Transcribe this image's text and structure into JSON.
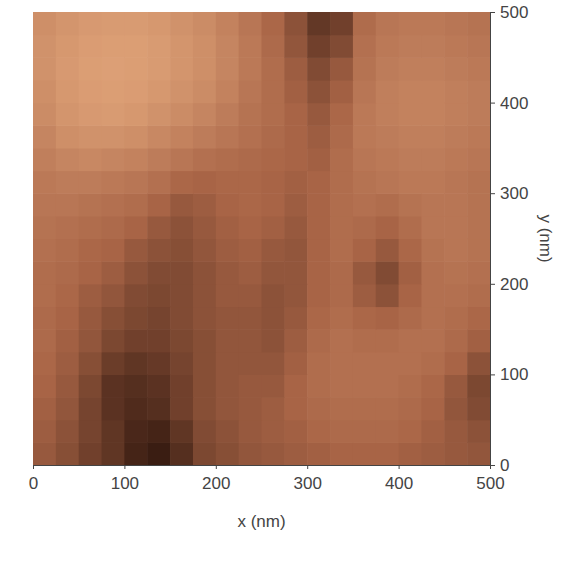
{
  "chart_data": {
    "type": "heatmap",
    "xlabel": "x (nm)",
    "ylabel": "y (nm)",
    "xlim": [
      0,
      500
    ],
    "ylim": [
      0,
      500
    ],
    "xticks": [
      0,
      100,
      200,
      300,
      400,
      500
    ],
    "yticks": [
      0,
      100,
      200,
      300,
      400,
      500
    ],
    "zlim": [
      0,
      100
    ],
    "x": [
      12.5,
      37.5,
      62.5,
      87.5,
      112.5,
      137.5,
      162.5,
      187.5,
      212.5,
      237.5,
      262.5,
      287.5,
      312.5,
      337.5,
      362.5,
      387.5,
      412.5,
      437.5,
      462.5,
      487.5
    ],
    "y": [
      12.5,
      37.5,
      62.5,
      87.5,
      112.5,
      137.5,
      162.5,
      187.5,
      212.5,
      237.5,
      262.5,
      287.5,
      312.5,
      337.5,
      362.5,
      387.5,
      412.5,
      437.5,
      462.5,
      487.5
    ],
    "cells": [
      [
        44,
        38,
        30,
        24,
        14,
        10,
        20,
        34,
        38,
        42,
        44,
        46,
        48,
        50,
        50,
        50,
        48,
        46,
        44,
        42
      ],
      [
        46,
        40,
        32,
        24,
        16,
        14,
        24,
        36,
        40,
        44,
        46,
        48,
        52,
        54,
        54,
        54,
        52,
        48,
        44,
        40
      ],
      [
        48,
        42,
        32,
        22,
        18,
        20,
        30,
        38,
        42,
        44,
        46,
        50,
        54,
        56,
        56,
        56,
        54,
        50,
        42,
        36
      ],
      [
        50,
        44,
        34,
        22,
        20,
        22,
        30,
        38,
        42,
        44,
        44,
        50,
        56,
        58,
        58,
        58,
        56,
        52,
        44,
        34
      ],
      [
        52,
        46,
        38,
        28,
        24,
        26,
        32,
        38,
        42,
        42,
        42,
        48,
        56,
        58,
        58,
        58,
        58,
        56,
        50,
        40
      ],
      [
        54,
        48,
        42,
        34,
        30,
        30,
        34,
        38,
        42,
        42,
        40,
        46,
        54,
        58,
        56,
        56,
        58,
        58,
        54,
        48
      ],
      [
        54,
        50,
        44,
        38,
        34,
        32,
        36,
        40,
        42,
        42,
        40,
        44,
        52,
        56,
        52,
        50,
        54,
        58,
        56,
        52
      ],
      [
        56,
        52,
        46,
        42,
        36,
        34,
        36,
        40,
        44,
        44,
        40,
        42,
        50,
        54,
        46,
        40,
        50,
        58,
        58,
        56
      ],
      [
        56,
        54,
        50,
        46,
        40,
        36,
        36,
        40,
        44,
        46,
        42,
        42,
        50,
        54,
        44,
        36,
        48,
        58,
        60,
        58
      ],
      [
        58,
        56,
        52,
        50,
        44,
        40,
        38,
        42,
        46,
        48,
        44,
        42,
        50,
        56,
        50,
        44,
        52,
        60,
        62,
        60
      ],
      [
        60,
        58,
        56,
        54,
        50,
        44,
        40,
        44,
        48,
        50,
        48,
        44,
        50,
        56,
        54,
        50,
        56,
        62,
        62,
        60
      ],
      [
        62,
        62,
        60,
        58,
        56,
        50,
        44,
        46,
        50,
        52,
        50,
        46,
        50,
        56,
        58,
        56,
        60,
        62,
        62,
        60
      ],
      [
        64,
        66,
        66,
        64,
        62,
        58,
        52,
        50,
        52,
        52,
        50,
        48,
        50,
        56,
        60,
        62,
        64,
        64,
        62,
        60
      ],
      [
        68,
        72,
        74,
        72,
        70,
        66,
        62,
        58,
        56,
        54,
        52,
        50,
        48,
        56,
        62,
        64,
        66,
        66,
        64,
        62
      ],
      [
        72,
        78,
        80,
        80,
        78,
        74,
        70,
        66,
        62,
        58,
        54,
        50,
        46,
        54,
        64,
        66,
        68,
        68,
        66,
        64
      ],
      [
        76,
        82,
        85,
        86,
        84,
        80,
        76,
        72,
        66,
        60,
        56,
        50,
        44,
        52,
        64,
        68,
        70,
        70,
        68,
        66
      ],
      [
        78,
        84,
        87,
        88,
        87,
        84,
        80,
        76,
        70,
        62,
        56,
        48,
        40,
        48,
        62,
        68,
        70,
        70,
        68,
        66
      ],
      [
        80,
        85,
        88,
        89,
        88,
        86,
        82,
        78,
        72,
        64,
        56,
        46,
        36,
        44,
        60,
        66,
        68,
        68,
        66,
        64
      ],
      [
        80,
        84,
        87,
        88,
        88,
        86,
        82,
        78,
        72,
        64,
        54,
        42,
        30,
        36,
        58,
        64,
        66,
        66,
        64,
        62
      ],
      [
        78,
        82,
        85,
        86,
        86,
        84,
        80,
        76,
        70,
        62,
        52,
        40,
        25,
        30,
        55,
        62,
        64,
        64,
        62,
        60
      ]
    ]
  }
}
